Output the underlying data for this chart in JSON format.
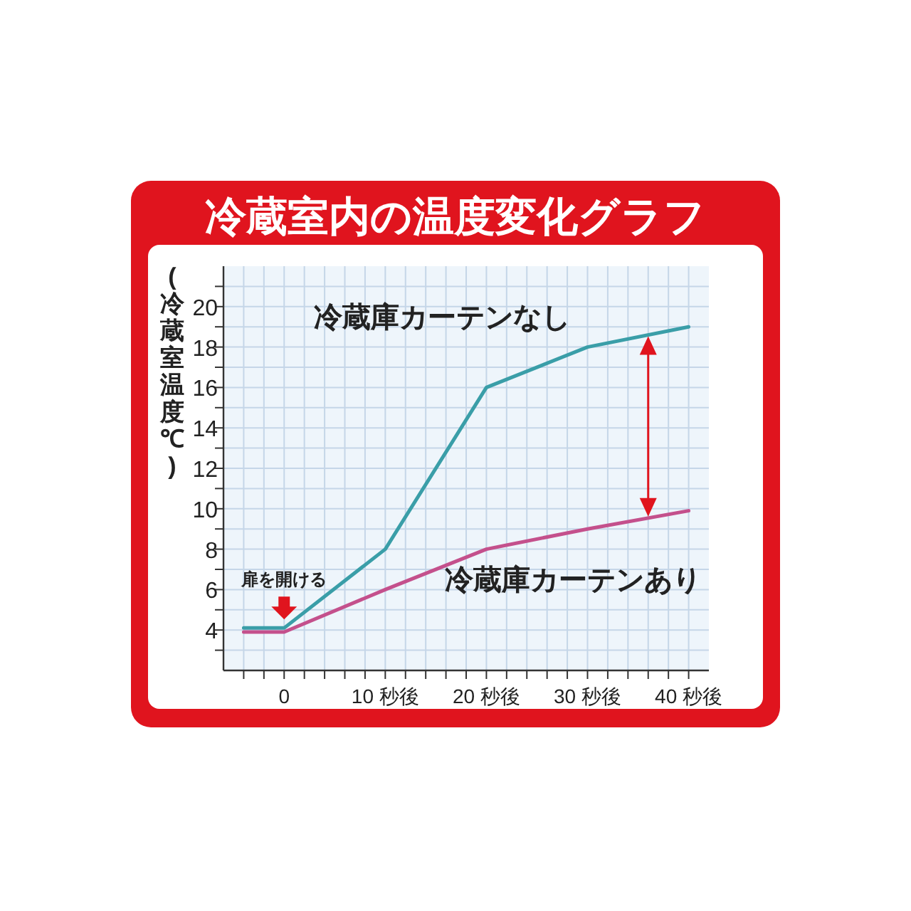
{
  "chart_data": {
    "type": "line",
    "title": "冷蔵室内の温度変化グラフ",
    "ylabel": "(冷蔵室温度℃)",
    "x": [
      -4,
      0,
      10,
      20,
      30,
      40
    ],
    "series": [
      {
        "name": "冷蔵庫カーテンなし",
        "color": "#3a9ea8",
        "values": [
          4.1,
          4.1,
          8,
          16,
          18,
          19
        ]
      },
      {
        "name": "冷蔵庫カーテンあり",
        "color": "#c4508c",
        "values": [
          3.9,
          3.9,
          6,
          8,
          9,
          9.9
        ]
      }
    ],
    "xlim": [
      -6,
      42
    ],
    "xticks": [
      {
        "value": -4,
        "label": null
      },
      {
        "value": -2,
        "label": null
      },
      0,
      {
        "value": 2,
        "label": null
      },
      {
        "value": 4,
        "label": null
      },
      {
        "value": 6,
        "label": null
      },
      {
        "value": 8,
        "label": null
      },
      {
        "value": 10,
        "label": "10 秒後"
      },
      {
        "value": 12,
        "label": null
      },
      {
        "value": 14,
        "label": null
      },
      {
        "value": 16,
        "label": null
      },
      {
        "value": 18,
        "label": null
      },
      {
        "value": 20,
        "label": "20 秒後"
      },
      {
        "value": 22,
        "label": null
      },
      {
        "value": 24,
        "label": null
      },
      {
        "value": 26,
        "label": null
      },
      {
        "value": 28,
        "label": null
      },
      {
        "value": 30,
        "label": "30 秒後"
      },
      {
        "value": 32,
        "label": null
      },
      {
        "value": 34,
        "label": null
      },
      {
        "value": 36,
        "label": null
      },
      {
        "value": 38,
        "label": null
      },
      {
        "value": 40,
        "label": "40 秒後"
      }
    ],
    "ylim": [
      2,
      22
    ],
    "yticks": [
      {
        "value": 3,
        "label": null
      },
      4,
      {
        "value": 5,
        "label": null
      },
      6,
      {
        "value": 7,
        "label": null
      },
      8,
      {
        "value": 9,
        "label": null
      },
      10,
      {
        "value": 11,
        "label": null
      },
      12,
      {
        "value": 13,
        "label": null
      },
      14,
      {
        "value": 15,
        "label": null
      },
      16,
      {
        "value": 17,
        "label": null
      },
      18,
      {
        "value": 19,
        "label": null
      },
      20,
      {
        "value": 21,
        "label": null
      }
    ],
    "grid": true,
    "legend": false,
    "annotations": [
      {
        "text": "扉を開ける",
        "x": 0,
        "y": 4.1
      }
    ]
  }
}
